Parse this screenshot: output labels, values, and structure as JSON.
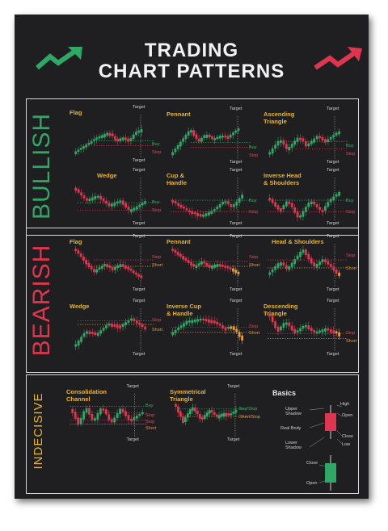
{
  "title": {
    "line1": "TRADING",
    "line2": "CHART PATTERNS"
  },
  "sections": {
    "bullish": "BULLISH",
    "bearish": "BEARISH",
    "indecisive": "INDECISIVE"
  },
  "labels": {
    "target": "Target",
    "buy": "Buy",
    "stop": "Stop",
    "short": "Short",
    "buy_stop": "Buy/Stop",
    "short_stop": "Short/Stop"
  },
  "bullish": [
    {
      "name": "Flag"
    },
    {
      "name": "Pennant"
    },
    {
      "name": "Ascending\nTriangle"
    },
    {
      "name": "Wedge"
    },
    {
      "name": "Cup &\nHandle"
    },
    {
      "name": "Inverse Head\n& Shoulders"
    }
  ],
  "bearish": [
    {
      "name": "Flag"
    },
    {
      "name": "Pennant"
    },
    {
      "name": "Head & Shoulders"
    },
    {
      "name": "Wedge"
    },
    {
      "name": "Inverse Cup\n& Handle"
    },
    {
      "name": "Descending\nTriangle"
    }
  ],
  "indecisive": [
    {
      "name": "Consolidation\nChannel"
    },
    {
      "name": "Symmetrical\nTriangle"
    }
  ],
  "basics": {
    "title": "Basics",
    "high": "High",
    "upper_shadow": "Upper\nShadow",
    "open": "Open",
    "real_body": "Real Body",
    "close": "Close",
    "lower_shadow": "Lower\nShadow",
    "low": "Low",
    "close2": "Close",
    "open2": "Open"
  },
  "colors": {
    "bg": "#1f1f21",
    "green": "#2fa866",
    "red": "#e0354f",
    "gold": "#e9b526",
    "orange": "#e39a3a"
  },
  "icons": {
    "bearish_arrow": "arrow-down-right-icon",
    "bullish_arrow": "arrow-up-right-icon"
  }
}
